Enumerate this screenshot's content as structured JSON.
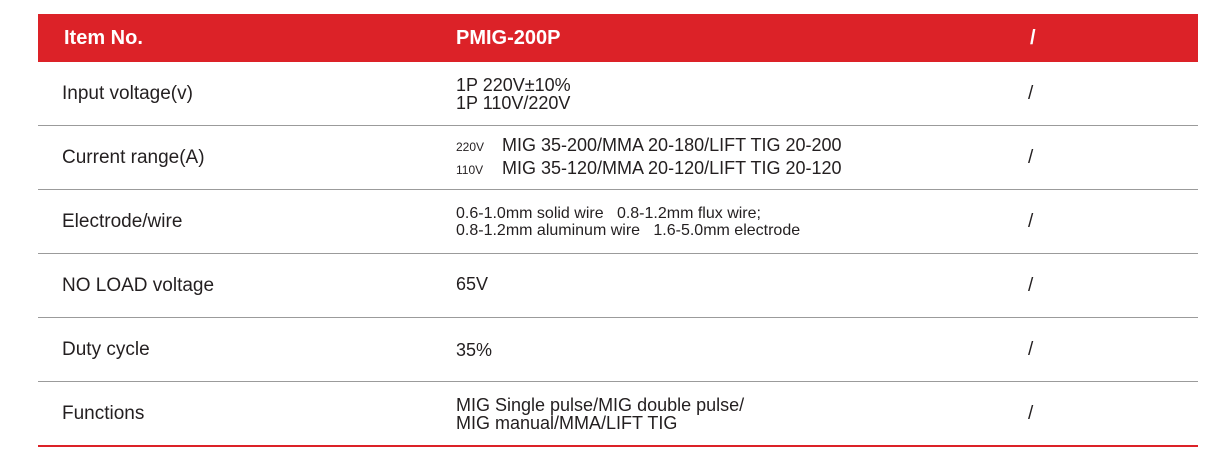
{
  "header": {
    "item_label": "Item No.",
    "model": "PMIG-200P",
    "third": "/"
  },
  "rows": [
    {
      "label": "Input voltage(v)",
      "lines": [
        "1P 220V±10%",
        "1P 110V/220V"
      ],
      "third": "/"
    },
    {
      "label": "Current range(A)",
      "lines": [
        {
          "tag": "220V",
          "text": "MIG 35-200/MMA 20-180/LIFT TIG 20-200"
        },
        {
          "tag": "110V",
          "text": "MIG 35-120/MMA 20-120/LIFT TIG 20-120"
        }
      ],
      "third": "/"
    },
    {
      "label": "Electrode/wire",
      "lines": [
        "0.6-1.0mm solid wire   0.8-1.2mm flux wire;",
        "0.8-1.2mm aluminum wire   1.6-5.0mm electrode"
      ],
      "third": "/"
    },
    {
      "label": "NO LOAD voltage",
      "lines": [
        "65V"
      ],
      "third": "/"
    },
    {
      "label": "Duty cycle",
      "lines": [
        "35%"
      ],
      "third": "/"
    },
    {
      "label": "Functions",
      "lines": [
        "MIG Single pulse/MIG double pulse/",
        "MIG manual/MMA/LIFT TIG"
      ],
      "third": "/"
    }
  ],
  "colors": {
    "header_bg": "#dc2228",
    "header_text": "#ffffff",
    "body_text": "#231f20",
    "divider": "#9b9b9b"
  }
}
